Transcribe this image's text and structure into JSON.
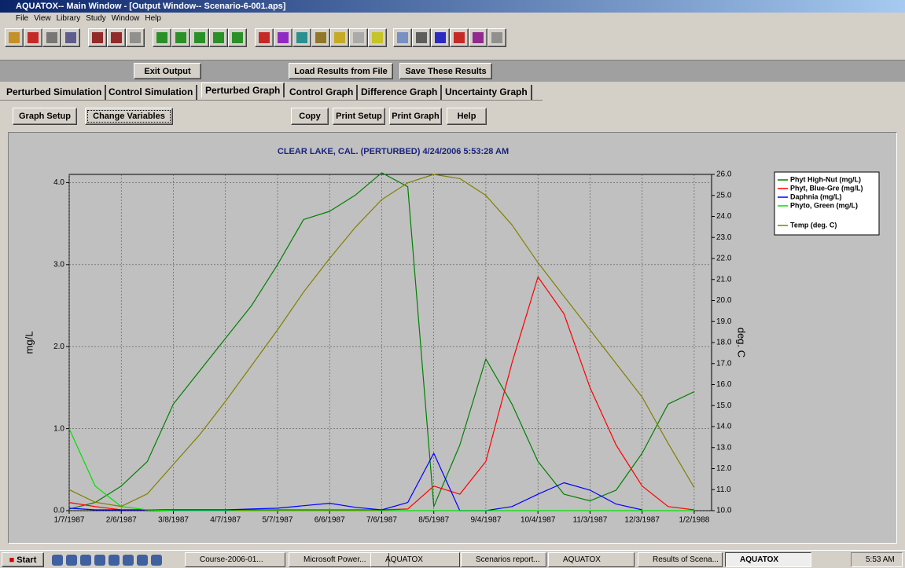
{
  "window": {
    "title": "AQUATOX-- Main Window - [Output Window-- Scenario-6-001.aps]"
  },
  "menu": [
    "File",
    "View",
    "Library",
    "Study",
    "Window",
    "Help"
  ],
  "top_buttons": [
    "Exit Output",
    "Load Results from File",
    "Save These Results"
  ],
  "tabs": [
    "Perturbed Simulation",
    "Control Simulation",
    "Perturbed Graph",
    "Control Graph",
    "Difference Graph",
    "Uncertainty Graph"
  ],
  "graph_buttons": [
    "Graph Setup",
    "Change Variables",
    "Copy",
    "Print Setup",
    "Print Graph",
    "Help"
  ],
  "chart_data": {
    "type": "line",
    "title": "CLEAR LAKE, CAL. (PERTURBED)  4/24/2006 5:53:28 AM",
    "y_label": "mg/L",
    "y2_label": "deg. C",
    "x": [
      "1/7/1987",
      "1/22/1987",
      "2/6/1987",
      "2/21/1987",
      "3/8/1987",
      "3/23/1987",
      "4/7/1987",
      "4/22/1987",
      "5/7/1987",
      "5/22/1987",
      "6/6/1987",
      "6/21/1987",
      "7/6/1987",
      "7/21/1987",
      "8/5/1987",
      "8/20/1987",
      "9/4/1987",
      "9/19/1987",
      "10/4/1987",
      "10/19/1987",
      "11/3/1987",
      "11/18/1987",
      "12/3/1987",
      "12/18/1987",
      "1/2/1988"
    ],
    "xlim": [
      "1/7/1987",
      "1/12/1988"
    ],
    "xticks": [
      "1/7/1987",
      "2/6/1987",
      "3/8/1987",
      "4/7/1987",
      "5/7/1987",
      "6/6/1987",
      "7/6/1987",
      "8/5/1987",
      "9/4/1987",
      "10/4/1987",
      "11/3/1987",
      "12/3/1987",
      "1/2/1988"
    ],
    "ylim": [
      0,
      4.1
    ],
    "yticks": [
      {
        "value": 0,
        "label": "0.0"
      },
      {
        "value": 1,
        "label": "1.0"
      },
      {
        "value": 2,
        "label": "2.0"
      },
      {
        "value": 3,
        "label": "3.0"
      },
      {
        "value": 4,
        "label": "4.0"
      }
    ],
    "y2lim": [
      10,
      26
    ],
    "y2ticks": [
      {
        "value": 10,
        "label": "10.0"
      },
      {
        "value": 11,
        "label": "11.0"
      },
      {
        "value": 12,
        "label": "12.0"
      },
      {
        "value": 13,
        "label": "13.0"
      },
      {
        "value": 14,
        "label": "14.0"
      },
      {
        "value": 15,
        "label": "15.0"
      },
      {
        "value": 16,
        "label": "16.0"
      },
      {
        "value": 17,
        "label": "17.0"
      },
      {
        "value": 18,
        "label": "18.0"
      },
      {
        "value": 19,
        "label": "19.0"
      },
      {
        "value": 20,
        "label": "20.0"
      },
      {
        "value": 21,
        "label": "21.0"
      },
      {
        "value": 22,
        "label": "22.0"
      },
      {
        "value": 23,
        "label": "23.0"
      },
      {
        "value": 24,
        "label": "24.0"
      },
      {
        "value": 25,
        "label": "25.0"
      },
      {
        "value": 26,
        "label": "26.0"
      }
    ],
    "grid": true,
    "legend": "right",
    "series": [
      {
        "name": "Phyt High-Nut  (mg/L)",
        "color": "#008000",
        "values": [
          0.02,
          0.1,
          0.3,
          0.6,
          1.3,
          1.7,
          2.1,
          2.5,
          3.0,
          3.55,
          3.65,
          3.85,
          4.12,
          3.95,
          0.05,
          0.8,
          1.85,
          1.3,
          0.6,
          0.2,
          0.12,
          0.25,
          0.7,
          1.3,
          1.45
        ]
      },
      {
        "name": "Phyt, Blue-Gre (mg/L)",
        "color": "#ff0000",
        "values": [
          0.1,
          0.05,
          0.01,
          0.01,
          0.01,
          0.01,
          0.01,
          0.01,
          0.01,
          0.01,
          0.01,
          0.01,
          0.01,
          0.02,
          0.3,
          0.2,
          0.6,
          1.8,
          2.85,
          2.4,
          1.5,
          0.8,
          0.3,
          0.05,
          0.01
        ]
      },
      {
        "name": "Daphnia (mg/L)",
        "color": "#0000ff",
        "values": [
          0.03,
          0.01,
          0.01,
          0.01,
          0.01,
          0.01,
          0.01,
          0.02,
          0.03,
          0.06,
          0.09,
          0.04,
          0.01,
          0.1,
          0.7,
          0.0,
          0.0,
          0.05,
          0.2,
          0.34,
          0.25,
          0.08,
          0.01,
          null,
          null
        ]
      },
      {
        "name": "Phyto, Green (mg/L)",
        "color": "#00e000",
        "values": [
          1.0,
          0.3,
          0.05,
          0.01,
          0,
          0,
          0,
          0,
          0,
          0,
          0,
          0,
          0,
          0,
          0,
          0,
          0,
          0,
          0,
          0,
          0,
          0,
          0,
          0,
          0
        ]
      },
      {
        "name": "Temp (deg. C)",
        "color": "#808000",
        "axis": "y2",
        "values": [
          11.0,
          10.4,
          10.2,
          10.8,
          12.2,
          13.6,
          15.2,
          16.9,
          18.6,
          20.4,
          22.0,
          23.5,
          24.8,
          25.6,
          26.0,
          25.8,
          25.0,
          23.6,
          21.8,
          20.2,
          18.6,
          17.0,
          15.4,
          13.2,
          11.1
        ]
      }
    ]
  },
  "taskbar": {
    "start": "Start",
    "tasks": [
      "Course-2006-01...",
      "Microsoft Power...",
      "AQUATOX",
      "Scenarios report...",
      "AQUATOX",
      "Results of Scena...",
      "AQUATOX"
    ],
    "clock": "5:53 AM"
  }
}
